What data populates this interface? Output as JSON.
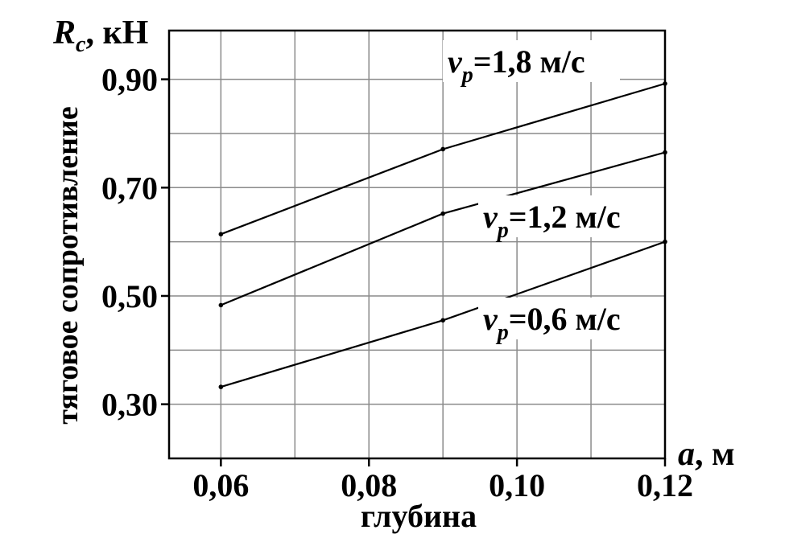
{
  "chart_data": {
    "type": "line",
    "title": "",
    "ylabel": "тяговое сопротивление",
    "xlabel": "глубина",
    "y_axis_symbol": "R",
    "y_axis_symbol_sub": "c",
    "y_axis_unit": ", кН",
    "x_axis_symbol": "a",
    "x_axis_unit": ", м",
    "xlim": [
      0.053,
      0.12
    ],
    "ylim": [
      0.2,
      0.99
    ],
    "x_ticks": [
      0.06,
      0.08,
      0.1,
      0.12
    ],
    "x_tick_labels": [
      "0,06",
      "0,08",
      "0,10",
      "0,12"
    ],
    "y_ticks": [
      0.3,
      0.5,
      0.7,
      0.9
    ],
    "y_tick_labels": [
      "0,30",
      "0,50",
      "0,70",
      "0,90"
    ],
    "grid": true,
    "x_grid_step": 0.01,
    "y_grid_step": 0.1,
    "series": [
      {
        "name": "=1,8 м/с",
        "symbol": "v",
        "sub": "p",
        "x": [
          0.06,
          0.09,
          0.12
        ],
        "values": [
          0.614,
          0.771,
          0.892
        ]
      },
      {
        "name": "=1,2 м/с",
        "symbol": "v",
        "sub": "p",
        "x": [
          0.06,
          0.09,
          0.12
        ],
        "values": [
          0.483,
          0.652,
          0.765
        ]
      },
      {
        "name": "=0,6 м/с",
        "symbol": "v",
        "sub": "p",
        "x": [
          0.06,
          0.09,
          0.12
        ],
        "values": [
          0.332,
          0.455,
          0.6
        ]
      }
    ]
  }
}
